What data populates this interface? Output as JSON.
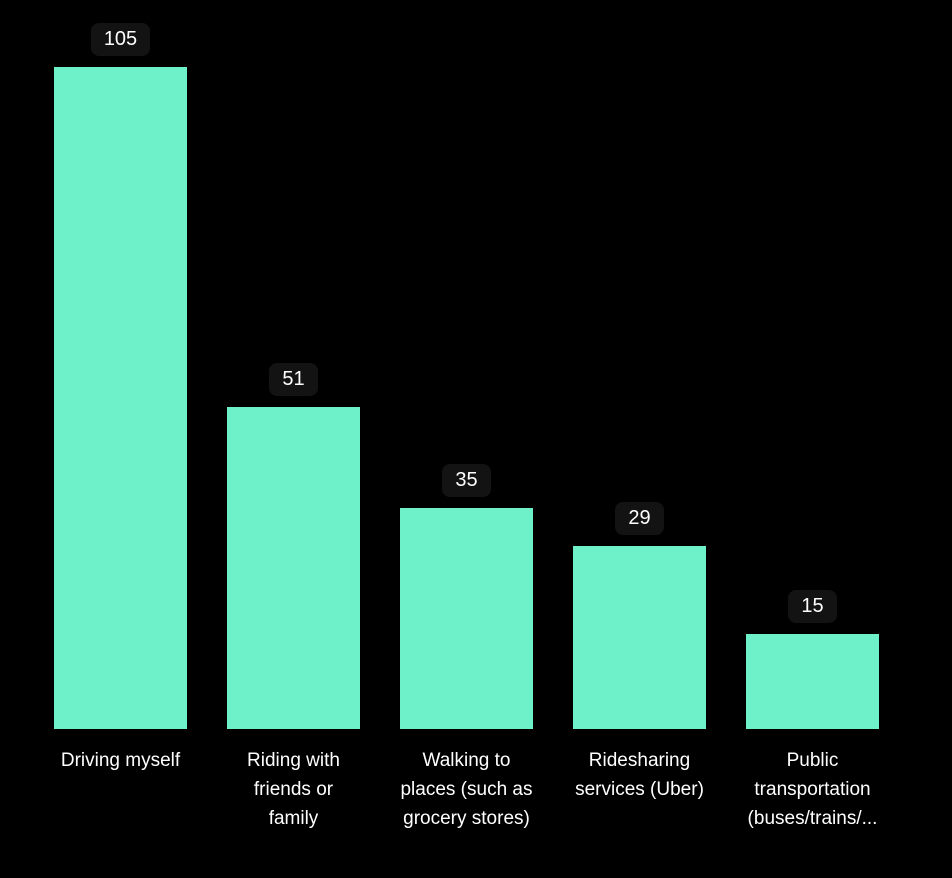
{
  "chart_data": {
    "type": "bar",
    "title": "",
    "xlabel": "",
    "ylabel": "",
    "categories": [
      "Driving myself",
      "Riding with friends or family",
      "Walking to places (such as grocery stores)",
      "Ridesharing services (Uber)",
      "Public transportation (buses/trains/..."
    ],
    "categories_wrapped": [
      [
        "Driving myself"
      ],
      [
        "Riding with",
        "friends or",
        "family"
      ],
      [
        "Walking to",
        "places (such as",
        "grocery stores)"
      ],
      [
        "Ridesharing",
        "services (Uber)"
      ],
      [
        "Public",
        "transportation",
        "(buses/trains/..."
      ]
    ],
    "values": [
      105,
      51,
      35,
      29,
      15
    ],
    "value_labels": [
      "105",
      "51",
      "35",
      "29",
      "15"
    ],
    "ylim": [
      0,
      110
    ],
    "grid": false,
    "legend": false,
    "axes_visible": false,
    "colors": {
      "background": "#000000",
      "bar_fill": "#6EF0C8",
      "value_label_text": "#FFFFFF",
      "value_label_background": "#131313",
      "category_label_text": "#FFFFFF"
    }
  }
}
